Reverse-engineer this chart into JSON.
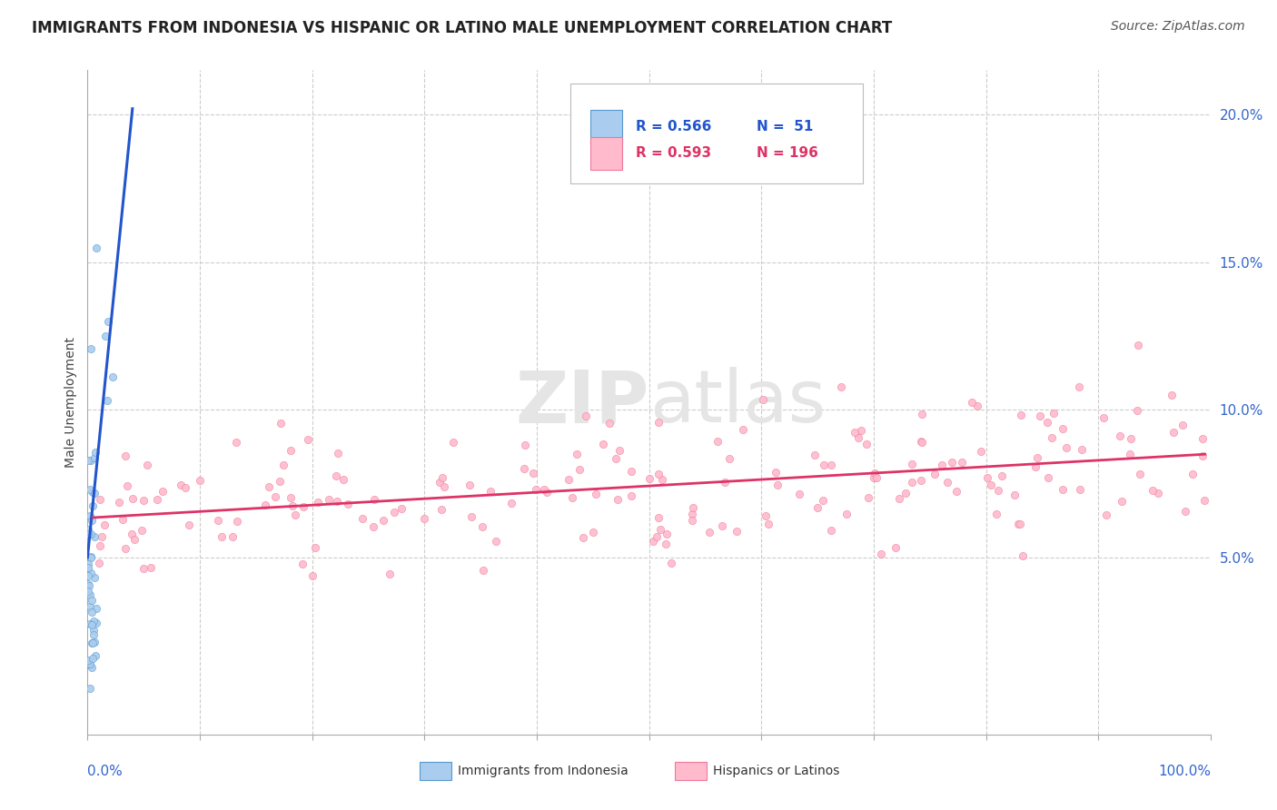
{
  "title": "IMMIGRANTS FROM INDONESIA VS HISPANIC OR LATINO MALE UNEMPLOYMENT CORRELATION CHART",
  "source": "Source: ZipAtlas.com",
  "ylabel": "Male Unemployment",
  "xlim": [
    0.0,
    1.0
  ],
  "ylim": [
    -0.01,
    0.215
  ],
  "ytick_positions": [
    0.05,
    0.1,
    0.15,
    0.2
  ],
  "ytick_labels": [
    "5.0%",
    "10.0%",
    "15.0%",
    "20.0%"
  ],
  "legend_entries": [
    {
      "label": "Immigrants from Indonesia",
      "R": 0.566,
      "N": 51
    },
    {
      "label": "Hispanics or Latinos",
      "R": 0.593,
      "N": 196
    }
  ],
  "blue_line_color": "#2255cc",
  "pink_line_color": "#dd3366",
  "scatter_blue_color": "#aaccee",
  "scatter_pink_color": "#ffbbcc",
  "scatter_blue_edge": "#5599cc",
  "scatter_pink_edge": "#ee7799",
  "watermark_zi": "ZIP",
  "watermark_atlas": "atlas",
  "watermark_color": "#e5e5e5",
  "grid_color": "#cccccc",
  "background_color": "#ffffff",
  "title_fontsize": 12,
  "source_fontsize": 10,
  "ytick_color": "#3366cc",
  "xlabel_color": "#3366cc"
}
